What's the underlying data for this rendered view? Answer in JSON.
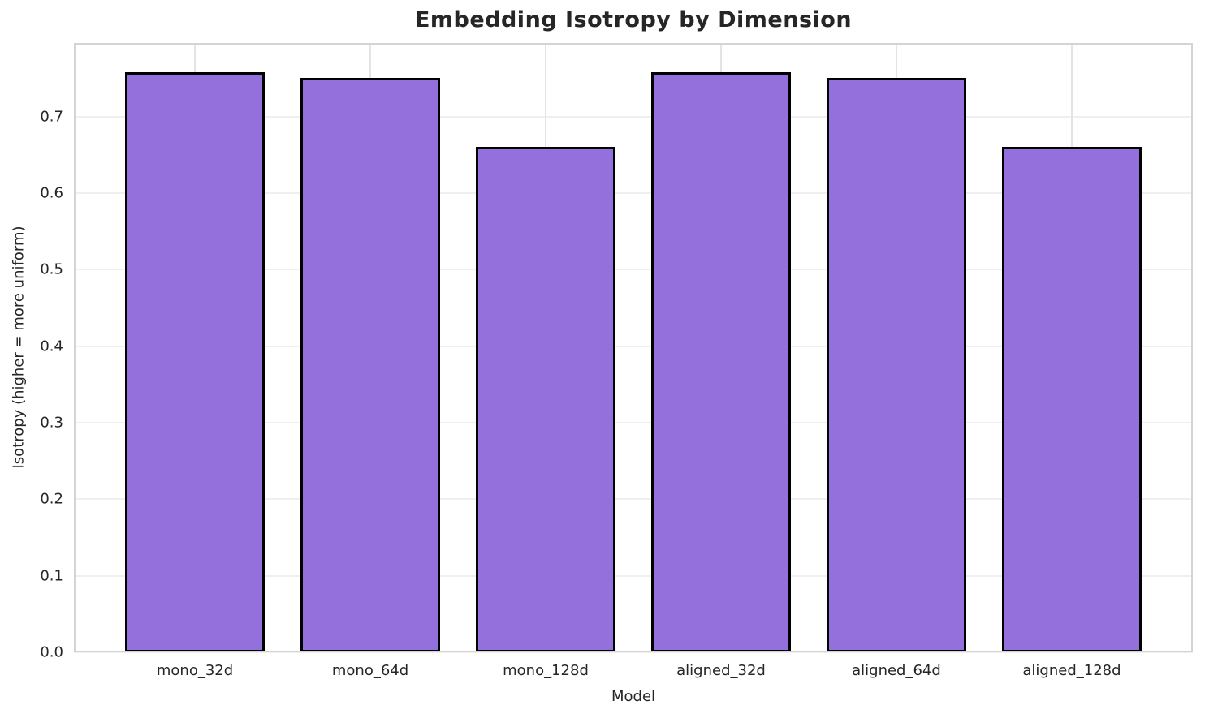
{
  "chart_data": {
    "type": "bar",
    "title": "Embedding Isotropy by Dimension",
    "xlabel": "Model",
    "ylabel": "Isotropy (higher = more uniform)",
    "categories": [
      "mono_32d",
      "mono_64d",
      "mono_128d",
      "aligned_32d",
      "aligned_64d",
      "aligned_128d"
    ],
    "values": [
      0.758,
      0.75,
      0.66,
      0.758,
      0.75,
      0.66
    ],
    "ylim": [
      0,
      0.796
    ],
    "yticks": [
      0.0,
      0.1,
      0.2,
      0.3,
      0.4,
      0.5,
      0.6,
      0.7
    ],
    "ytick_decimals": 1,
    "xlim": [
      -0.69,
      5.69
    ],
    "bar_width": 0.8,
    "grid": "both",
    "legend": "none",
    "colors": {
      "bar_fill": "#9370DB",
      "bar_edge": "#000000",
      "grid_h": "#efefef",
      "grid_v": "#e4e4e4",
      "spine": "#d4d4d4",
      "text": "#262626"
    }
  }
}
